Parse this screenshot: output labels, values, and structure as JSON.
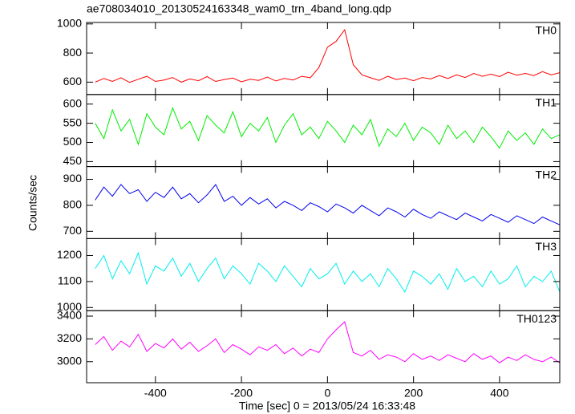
{
  "chart_data": {
    "type": "line",
    "title": "ae708034010_20130524163348_wam0_trn_4band_long.qdp",
    "x_label": "Time [sec] 0 = 2013/05/24 16:33:48",
    "y_label": "Counts/sec",
    "xlim": [
      -560,
      540
    ],
    "xticks": [
      -400,
      -200,
      0,
      200,
      400
    ],
    "x": [
      -540,
      -520,
      -500,
      -480,
      -460,
      -440,
      -420,
      -400,
      -380,
      -360,
      -340,
      -320,
      -300,
      -280,
      -260,
      -240,
      -220,
      -200,
      -180,
      -160,
      -140,
      -120,
      -100,
      -80,
      -60,
      -40,
      -20,
      0,
      20,
      40,
      60,
      80,
      100,
      120,
      140,
      160,
      180,
      200,
      220,
      240,
      260,
      280,
      300,
      320,
      340,
      360,
      380,
      400,
      420,
      440,
      460,
      480,
      500,
      520,
      540
    ],
    "series": [
      {
        "name": "TH0",
        "color": "#ff0000",
        "ylim": [
          515,
          1010
        ],
        "yticks": [
          600,
          800,
          1000
        ],
        "values": [
          600,
          625,
          605,
          630,
          598,
          620,
          640,
          605,
          615,
          632,
          600,
          622,
          610,
          638,
          605,
          618,
          628,
          602,
          620,
          612,
          635,
          608,
          625,
          615,
          640,
          630,
          700,
          840,
          880,
          960,
          720,
          650,
          630,
          612,
          640,
          618,
          628,
          610,
          632,
          622,
          645,
          625,
          650,
          632,
          660,
          640,
          655,
          638,
          668,
          648,
          660,
          645,
          672,
          650,
          665
        ]
      },
      {
        "name": "TH1",
        "color": "#00ee00",
        "ylim": [
          437,
          625
        ],
        "yticks": [
          450,
          500,
          550,
          600
        ],
        "values": [
          550,
          510,
          585,
          530,
          560,
          495,
          575,
          540,
          520,
          590,
          535,
          555,
          505,
          570,
          545,
          525,
          580,
          515,
          550,
          530,
          565,
          500,
          545,
          575,
          520,
          540,
          510,
          555,
          530,
          500,
          545,
          520,
          560,
          490,
          535,
          515,
          550,
          505,
          540,
          525,
          495,
          545,
          510,
          530,
          500,
          540,
          515,
          485,
          530,
          505,
          525,
          495,
          535,
          510,
          520
        ]
      },
      {
        "name": "TH2",
        "color": "#0000ee",
        "ylim": [
          672,
          949
        ],
        "yticks": [
          700,
          800,
          900
        ],
        "values": [
          820,
          870,
          835,
          880,
          845,
          860,
          815,
          850,
          830,
          870,
          825,
          845,
          810,
          840,
          880,
          815,
          835,
          800,
          830,
          805,
          825,
          790,
          815,
          800,
          780,
          810,
          795,
          775,
          805,
          790,
          770,
          800,
          780,
          760,
          790,
          775,
          755,
          785,
          765,
          750,
          775,
          760,
          745,
          770,
          755,
          740,
          765,
          750,
          735,
          760,
          745,
          730,
          755,
          740,
          725
        ]
      },
      {
        "name": "TH3",
        "color": "#00eeee",
        "ylim": [
          988,
          1265
        ],
        "yticks": [
          1000,
          1100,
          1200
        ],
        "values": [
          1150,
          1200,
          1110,
          1180,
          1130,
          1210,
          1090,
          1160,
          1140,
          1190,
          1120,
          1170,
          1100,
          1150,
          1190,
          1110,
          1160,
          1130,
          1090,
          1170,
          1140,
          1100,
          1160,
          1120,
          1080,
          1150,
          1110,
          1130,
          1170,
          1090,
          1140,
          1100,
          1130,
          1080,
          1150,
          1110,
          1060,
          1140,
          1120,
          1090,
          1130,
          1070,
          1150,
          1100,
          1120,
          1080,
          1140,
          1090,
          1110,
          1160,
          1080,
          1120,
          1100,
          1140,
          1060
        ]
      },
      {
        "name": "TH0123",
        "color": "#ff00ff",
        "ylim": [
          2815,
          3448
        ],
        "yticks": [
          3000,
          3200,
          3400
        ],
        "values": [
          3150,
          3220,
          3100,
          3180,
          3130,
          3240,
          3090,
          3160,
          3120,
          3200,
          3110,
          3170,
          3090,
          3140,
          3200,
          3080,
          3150,
          3110,
          3060,
          3130,
          3100,
          3150,
          3070,
          3120,
          3050,
          3110,
          3080,
          3200,
          3280,
          3350,
          3080,
          3050,
          3100,
          3020,
          3060,
          3040,
          3000,
          3070,
          3020,
          3050,
          3010,
          3060,
          3030,
          3000,
          3070,
          3020,
          3050,
          2990,
          3040,
          3010,
          3060,
          3020,
          3000,
          3040,
          2990
        ]
      }
    ]
  }
}
